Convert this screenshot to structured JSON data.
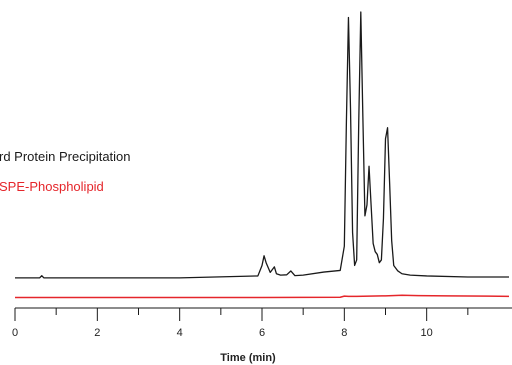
{
  "chart_data": {
    "type": "line",
    "xlabel": "Time (min)",
    "xlim": [
      0,
      12
    ],
    "ylim": [
      0,
      100
    ],
    "x_ticks": [
      0,
      2,
      4,
      6,
      8,
      10
    ],
    "x_tick_labels": [
      "0",
      "2",
      "4",
      "6",
      "8",
      "10"
    ],
    "x_minor_ticks": [
      1,
      3,
      5,
      7,
      9,
      11
    ],
    "grid": false,
    "legend_position": "middle-left",
    "series": [
      {
        "name": "rd Protein Precipitation",
        "color": "#1a1a1a",
        "x": [
          0,
          0.6,
          0.65,
          0.7,
          2,
          4,
          5.9,
          6.0,
          6.05,
          6.1,
          6.2,
          6.3,
          6.35,
          6.45,
          6.6,
          6.7,
          6.8,
          7.0,
          7.5,
          7.9,
          8.0,
          8.05,
          8.1,
          8.15,
          8.2,
          8.25,
          8.3,
          8.35,
          8.4,
          8.45,
          8.5,
          8.55,
          8.6,
          8.65,
          8.7,
          8.75,
          8.8,
          8.85,
          8.9,
          8.95,
          9.0,
          9.05,
          9.1,
          9.15,
          9.2,
          9.3,
          9.4,
          9.6,
          10,
          11,
          12
        ],
        "y": [
          3.5,
          3.5,
          4.3,
          3.5,
          3.5,
          3.5,
          4.2,
          8,
          11.5,
          9,
          5.5,
          7.5,
          5,
          4.5,
          4.6,
          6,
          4.3,
          4.5,
          5.6,
          6.2,
          15,
          60,
          98,
          65,
          20,
          8,
          10,
          60,
          100,
          62,
          26,
          30,
          44,
          30,
          16,
          13,
          12,
          9,
          10,
          25,
          54,
          58,
          38,
          17,
          8,
          6,
          5,
          4.5,
          4.2,
          3.8,
          3.8
        ]
      },
      {
        "name": "SPE-Phospholipid",
        "color": "#e5262b",
        "x": [
          0,
          2,
          4,
          6,
          7.9,
          8.0,
          8.1,
          8.3,
          8.6,
          9.0,
          9.4,
          9.8,
          10.5,
          11.5,
          12
        ],
        "y": [
          0,
          0,
          0,
          0,
          0.1,
          0.5,
          0.4,
          0.4,
          0.5,
          0.6,
          0.8,
          0.7,
          0.6,
          0.5,
          0.4
        ]
      }
    ]
  }
}
